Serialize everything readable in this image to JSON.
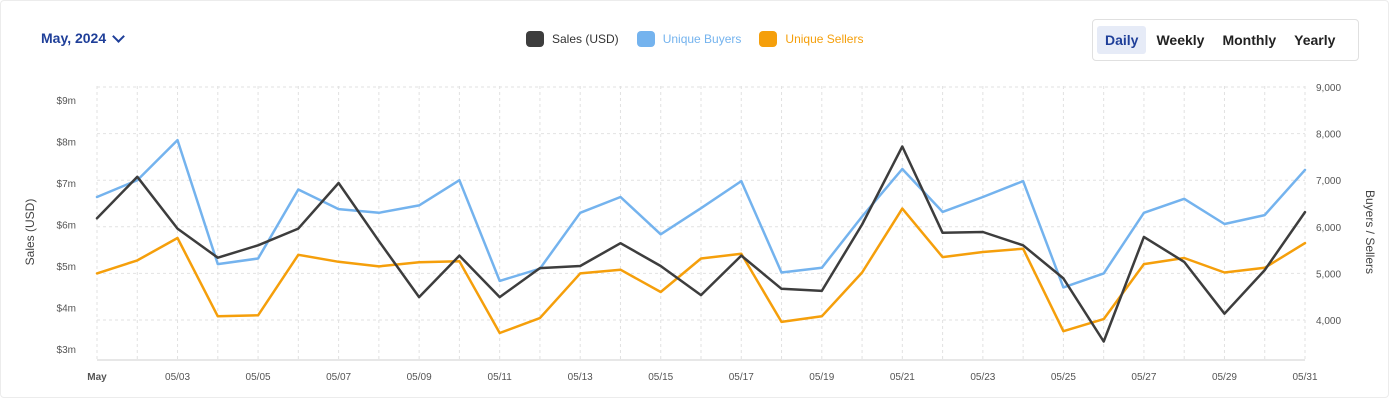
{
  "controls": {
    "month_label": "May, 2024",
    "tabs": [
      {
        "label": "Daily",
        "active": true
      },
      {
        "label": "Weekly",
        "active": false
      },
      {
        "label": "Monthly",
        "active": false
      },
      {
        "label": "Yearly",
        "active": false
      }
    ]
  },
  "colors": {
    "sales": "#3d3d3d",
    "buyers": "#74b3ee",
    "sellers": "#f59f0b",
    "grid": "#e2e2e2",
    "tick": "#555555"
  },
  "chart_data": {
    "type": "line",
    "ylabel_left": "Sales (USD)",
    "ylabel_right": "Buyers / Sellers",
    "left_ticks": [
      "$3m",
      "$4m",
      "$5m",
      "$6m",
      "$7m",
      "$8m",
      "$9m"
    ],
    "right_ticks": [
      "4,000",
      "5,000",
      "6,000",
      "7,000",
      "8,000",
      "9,000"
    ],
    "left_range": [
      3,
      9
    ],
    "right_range": [
      3400,
      9000
    ],
    "x_labels": [
      {
        "day": 1,
        "label": "May"
      },
      {
        "day": 3,
        "label": "05/03"
      },
      {
        "day": 5,
        "label": "05/05"
      },
      {
        "day": 7,
        "label": "05/07"
      },
      {
        "day": 9,
        "label": "05/09"
      },
      {
        "day": 11,
        "label": "05/11"
      },
      {
        "day": 13,
        "label": "05/13"
      },
      {
        "day": 15,
        "label": "05/15"
      },
      {
        "day": 17,
        "label": "05/17"
      },
      {
        "day": 19,
        "label": "05/19"
      },
      {
        "day": 21,
        "label": "05/21"
      },
      {
        "day": 23,
        "label": "05/23"
      },
      {
        "day": 25,
        "label": "05/25"
      },
      {
        "day": 27,
        "label": "05/27"
      },
      {
        "day": 29,
        "label": "05/29"
      },
      {
        "day": 31,
        "label": "05/31"
      }
    ],
    "days": [
      1,
      2,
      3,
      4,
      5,
      6,
      7,
      8,
      9,
      10,
      11,
      12,
      13,
      14,
      15,
      16,
      17,
      18,
      19,
      20,
      21,
      22,
      23,
      24,
      25,
      26,
      27,
      28,
      29,
      30,
      31
    ],
    "series": [
      {
        "name": "Sales (USD)",
        "key": "sales",
        "axis": "left",
        "values": [
          6.15,
          7.15,
          5.9,
          5.2,
          5.5,
          5.9,
          7.0,
          5.6,
          4.25,
          5.25,
          4.25,
          4.95,
          5.0,
          5.55,
          5.0,
          4.3,
          5.25,
          4.45,
          4.4,
          6.0,
          7.88,
          5.8,
          5.82,
          5.5,
          4.7,
          3.18,
          5.7,
          5.1,
          3.85,
          4.9,
          6.3
        ]
      },
      {
        "name": "Unique Buyers",
        "key": "buyers",
        "axis": "right",
        "values": [
          6640,
          7000,
          7860,
          5200,
          5320,
          6800,
          6380,
          6300,
          6460,
          7000,
          4840,
          5100,
          6300,
          6640,
          5840,
          6400,
          6980,
          5020,
          5120,
          6220,
          7240,
          6320,
          6640,
          6980,
          4700,
          5000,
          6300,
          6600,
          6060,
          6250,
          7220
        ]
      },
      {
        "name": "Unique Sellers",
        "key": "sellers",
        "axis": "right",
        "values": [
          5000,
          5280,
          5760,
          4080,
          4100,
          5400,
          5250,
          5150,
          5240,
          5260,
          3720,
          4040,
          5000,
          5080,
          4600,
          5320,
          5420,
          3960,
          4080,
          5020,
          6390,
          5350,
          5460,
          5530,
          3760,
          4020,
          5200,
          5330,
          5020,
          5120,
          5650
        ]
      }
    ]
  }
}
